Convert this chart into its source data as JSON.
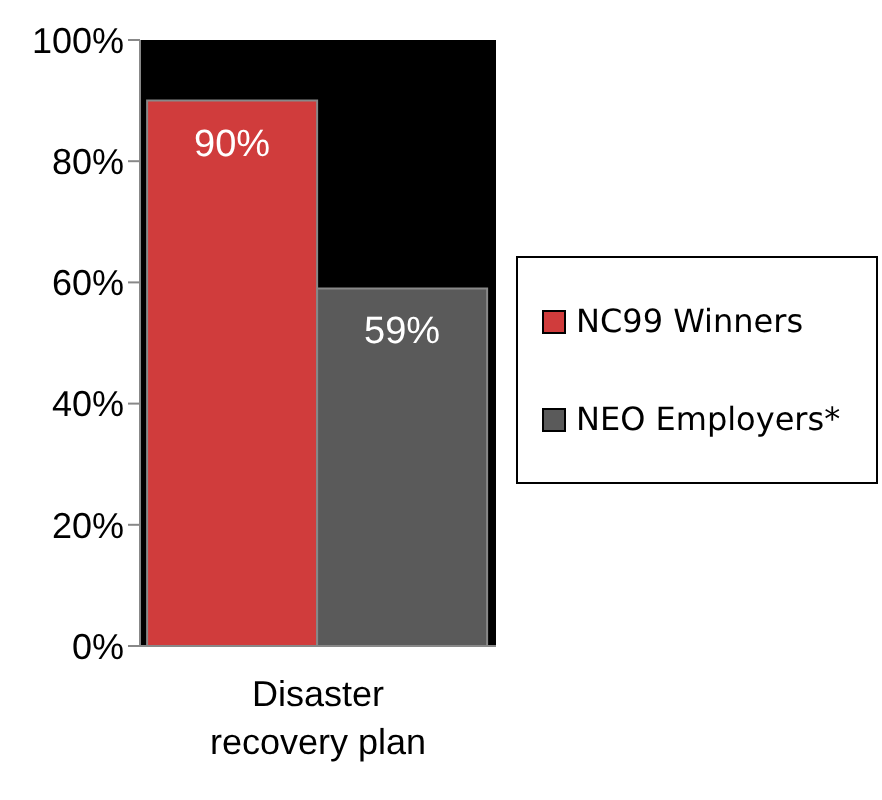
{
  "chart_data": {
    "type": "bar",
    "categories": [
      "Disaster recovery plan"
    ],
    "series": [
      {
        "name": "NC99 Winners",
        "color": "#d03c3c",
        "values": [
          90
        ]
      },
      {
        "name": "NEO Employers*",
        "color": "#5a5a5a",
        "values": [
          59
        ]
      }
    ],
    "ylim": [
      0,
      100
    ],
    "yticks": [
      {
        "value": 0,
        "label": "0%"
      },
      {
        "value": 20,
        "label": "20%"
      },
      {
        "value": 40,
        "label": "40%"
      },
      {
        "value": 60,
        "label": "60%"
      },
      {
        "value": 80,
        "label": "80%"
      },
      {
        "value": 100,
        "label": "100%"
      }
    ],
    "value_labels": [
      "90%",
      "59%"
    ],
    "legend": "right",
    "grid": false
  }
}
